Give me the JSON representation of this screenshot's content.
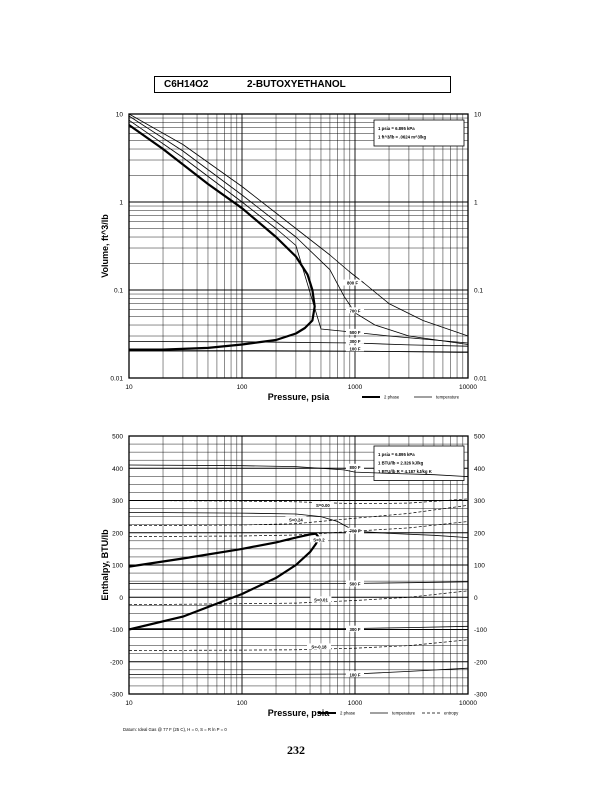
{
  "header": {
    "formula": "C6H14O2",
    "name": "2-BUTOXYETHANOL"
  },
  "page_number": "232",
  "chart_data": [
    {
      "type": "line",
      "xlabel": "Pressure,  psia",
      "ylabel": "Volume, ft^3/lb",
      "xscale": "log",
      "yscale": "log",
      "xlim": [
        10,
        10000
      ],
      "ylim": [
        0.01,
        10
      ],
      "x_tick_labels": [
        "10",
        "100",
        "1000",
        "10000"
      ],
      "y_tick_labels": [
        "0.01",
        "0.1",
        "1",
        "10"
      ],
      "grid": true,
      "conversion_box": [
        "1 psia  =  6.895 kPa",
        "1 ft^3/lb  =  .0624 m^3/kg"
      ],
      "legend": [
        "2 phase",
        "temperature"
      ],
      "legend_position": "bottom-right",
      "series": [
        {
          "kind": "2phase",
          "x": [
            10,
            20,
            50,
            100,
            200,
            300,
            380,
            420,
            440,
            420,
            360,
            300,
            200,
            100,
            50,
            20,
            10
          ],
          "y": [
            7.5,
            4.0,
            1.6,
            0.85,
            0.4,
            0.24,
            0.15,
            0.1,
            0.065,
            0.045,
            0.037,
            0.032,
            0.027,
            0.024,
            0.022,
            0.021,
            0.021
          ]
        },
        {
          "kind": "temperature",
          "name": "800 F",
          "x": [
            10,
            30,
            100,
            300,
            600,
            900,
            1200,
            2000,
            4000,
            10000
          ],
          "y": [
            10,
            4.5,
            1.5,
            0.5,
            0.25,
            0.16,
            0.12,
            0.07,
            0.045,
            0.03
          ]
        },
        {
          "kind": "temperature",
          "name": "700 F",
          "x": [
            10,
            30,
            100,
            300,
            600,
            800,
            1000,
            1500,
            3000,
            10000
          ],
          "y": [
            9.5,
            3.8,
            1.2,
            0.4,
            0.17,
            0.085,
            0.055,
            0.04,
            0.03,
            0.024
          ]
        },
        {
          "kind": "temperature",
          "name": "500 F",
          "x": [
            10,
            30,
            100,
            200,
            300,
            500,
            1000,
            2000,
            5000,
            10000
          ],
          "y": [
            8.5,
            3.2,
            1.0,
            0.5,
            0.32,
            0.036,
            0.033,
            0.03,
            0.027,
            0.025
          ]
        },
        {
          "kind": "temperature",
          "name": "300 F",
          "x": [
            10,
            100,
            1000,
            3000,
            10000
          ],
          "y": [
            0.026,
            0.0258,
            0.025,
            0.0238,
            0.023
          ]
        },
        {
          "kind": "temperature",
          "name": "100 F",
          "x": [
            10,
            100,
            1000,
            3000,
            10000
          ],
          "y": [
            0.0205,
            0.0205,
            0.0202,
            0.0199,
            0.0195
          ]
        }
      ]
    },
    {
      "type": "line",
      "xlabel": "Pressure,  psia",
      "ylabel": "Enthalpy, BTU/lb",
      "xscale": "log",
      "xlim": [
        10,
        10000
      ],
      "ylim": [
        -300,
        500
      ],
      "x_tick_labels": [
        "10",
        "100",
        "1000",
        "10000"
      ],
      "y_tick_labels": [
        "-300",
        "-200",
        "-100",
        "0",
        "100",
        "200",
        "300",
        "400",
        "500"
      ],
      "grid": true,
      "conversion_box": [
        "1 psia  =  6.895 kPa",
        "1 BTU/lb  =  2.326 kJ/kg",
        "1 BTU/lb R  =  4.187 kJ/kg K"
      ],
      "legend": [
        "2 phase",
        "temperature",
        "entropy"
      ],
      "legend_position": "bottom-right",
      "datum_note": "Datum: Ideal Gas @ 77 F (25 C),  H = 0,  S = R ln P = 0",
      "series": [
        {
          "kind": "2phase",
          "x": [
            10,
            30,
            100,
            200,
            300,
            400,
            450,
            480,
            450,
            400,
            300,
            200,
            100,
            30,
            10
          ],
          "y": [
            95,
            120,
            150,
            170,
            185,
            195,
            197,
            185,
            165,
            140,
            100,
            60,
            10,
            -60,
            -100
          ]
        },
        {
          "kind": "temperature",
          "name": "800 F",
          "x": [
            10,
            100,
            300,
            800,
            1000,
            2000,
            5000,
            10000
          ],
          "y": [
            410,
            408,
            405,
            395,
            388,
            384,
            380,
            374
          ]
        },
        {
          "kind": "temperature",
          "name": "700 F",
          "x": [
            10,
            100,
            300,
            500,
            700,
            1000,
            2000,
            5000,
            10000
          ],
          "y": [
            263,
            261,
            258,
            250,
            235,
            205,
            198,
            192,
            185
          ]
        },
        {
          "kind": "temperature",
          "name": "500 F",
          "x": [
            10,
            100,
            1000,
            3000,
            10000
          ],
          "y": [
            43,
            43,
            43,
            45,
            48
          ]
        },
        {
          "kind": "temperature",
          "name": "300 F",
          "x": [
            10,
            100,
            1000,
            3000,
            10000
          ],
          "y": [
            -97,
            -97,
            -97,
            -94,
            -90
          ]
        },
        {
          "kind": "temperature",
          "name": "100 F",
          "x": [
            10,
            100,
            1000,
            3000,
            10000
          ],
          "y": [
            -240,
            -240,
            -238,
            -230,
            -220
          ]
        },
        {
          "kind": "entropy",
          "name": "S=0.00",
          "x": [
            10,
            100,
            300,
            1000,
            3000,
            10000
          ],
          "y": [
            300,
            298,
            296,
            290,
            292,
            305
          ]
        },
        {
          "kind": "entropy",
          "name": "S=0.24",
          "x": [
            10,
            100,
            300,
            1000,
            3000,
            10000
          ],
          "y": [
            222,
            224,
            228,
            245,
            260,
            285
          ]
        },
        {
          "kind": "entropy",
          "name": "S=0.2",
          "x": [
            10,
            100,
            300,
            480,
            1000,
            3000,
            10000
          ],
          "y": [
            188,
            190,
            193,
            197,
            205,
            215,
            235
          ]
        },
        {
          "kind": "entropy",
          "name": "S=0.01",
          "x": [
            10,
            100,
            300,
            1000,
            3000,
            10000
          ],
          "y": [
            -23,
            -20,
            -18,
            -10,
            0,
            20
          ]
        },
        {
          "kind": "entropy",
          "name": "S=-0.18",
          "x": [
            10,
            100,
            300,
            1000,
            3000,
            10000
          ],
          "y": [
            -165,
            -164,
            -163,
            -158,
            -150,
            -132
          ]
        }
      ]
    }
  ]
}
